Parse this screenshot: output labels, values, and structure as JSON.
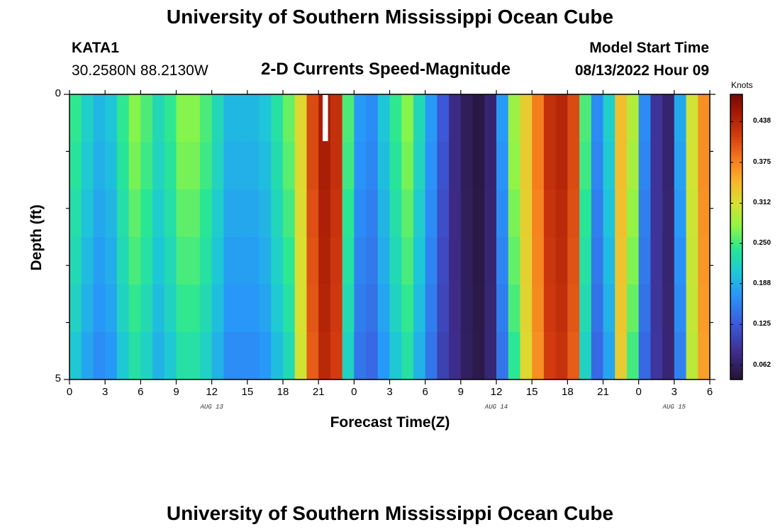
{
  "header": {
    "title": "University of Southern Mississippi Ocean Cube",
    "station": "KATA1",
    "coords": "30.2580N  88.2130W",
    "subtitle": "2-D Currents Speed-Magnitude",
    "model_start_label": "Model Start Time",
    "model_start_value": "08/13/2022 Hour 09",
    "footer_title": "University of Southern Mississippi Ocean Cube"
  },
  "colorbar": {
    "title": "Knots",
    "ticks": [
      "0.438",
      "0.375",
      "0.312",
      "0.250",
      "0.188",
      "0.125",
      "0.062"
    ]
  },
  "chart_data": {
    "type": "heatmap",
    "title": "2-D Currents Speed-Magnitude",
    "xlabel": "Forecast Time(Z)",
    "ylabel": "Depth (ft)",
    "x_tick_labels": [
      "0",
      "3",
      "6",
      "9",
      "12",
      "15",
      "18",
      "21",
      "0",
      "3",
      "6",
      "9",
      "12",
      "15",
      "18",
      "21",
      "0",
      "3",
      "6"
    ],
    "date_labels": [
      "AUG 13",
      "AUG 14",
      "AUG 15"
    ],
    "y_tick_labels": [
      "0",
      "5"
    ],
    "ylim": [
      5,
      0
    ],
    "units": "Knots",
    "colorscale_range": [
      0.04,
      0.48
    ],
    "x_hours_from_aug13_00z": [
      0,
      1,
      2,
      3,
      4,
      5,
      6,
      7,
      8,
      9,
      10,
      11,
      12,
      13,
      14,
      15,
      16,
      17,
      18,
      19,
      20,
      21,
      22,
      23,
      24,
      25,
      26,
      27,
      28,
      29,
      30,
      31,
      32,
      33,
      34,
      35,
      36,
      37,
      38,
      39,
      40,
      41,
      42,
      43,
      44,
      45,
      46,
      47,
      48,
      49,
      50,
      51,
      52,
      53,
      54
    ],
    "depth_levels_ft": [
      0.0,
      0.83,
      1.67,
      2.5,
      3.33,
      4.17
    ],
    "speed_profile_knots": [
      0.24,
      0.21,
      0.19,
      0.2,
      0.24,
      0.27,
      0.25,
      0.22,
      0.24,
      0.27,
      0.27,
      0.25,
      0.22,
      0.19,
      0.19,
      0.19,
      0.2,
      0.23,
      0.26,
      0.32,
      0.41,
      0.45,
      0.43,
      0.25,
      0.17,
      0.16,
      0.2,
      0.24,
      0.27,
      0.22,
      0.17,
      0.12,
      0.08,
      0.06,
      0.05,
      0.07,
      0.17,
      0.28,
      0.33,
      0.38,
      0.43,
      0.44,
      0.41,
      0.25,
      0.16,
      0.21,
      0.34,
      0.29,
      0.16,
      0.09,
      0.07,
      0.18,
      0.31,
      0.37,
      0.29
    ],
    "depth_factor": [
      1.0,
      1.0,
      0.97,
      0.94,
      0.91,
      0.87
    ],
    "missing_cells": [
      {
        "x_hours": 21,
        "depth_ft": 0.0
      }
    ]
  }
}
